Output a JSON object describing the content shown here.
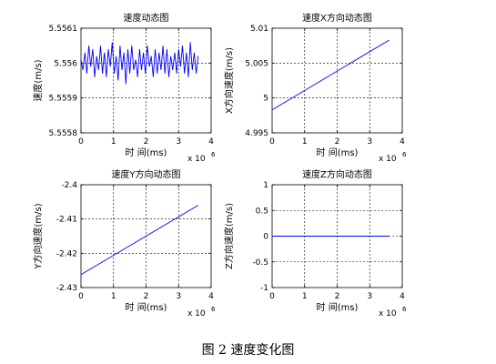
{
  "figure_caption": "图 2  速度变化图",
  "colors": {
    "series": "#0000ff",
    "axis": "#000000",
    "grid": "#000000",
    "background": "#ffffff"
  },
  "chart_data": [
    {
      "type": "line",
      "title": "速度动态图",
      "xlabel": "时 间(ms)",
      "ylabel": "速度(m/s)",
      "x_multiplier": "x 10",
      "x_multiplier_exp": "6",
      "xlim": [
        0,
        4
      ],
      "ylim": [
        5.5558,
        5.5561
      ],
      "xticks": [
        0,
        1,
        2,
        3,
        4
      ],
      "xtick_labels": [
        "0",
        "1",
        "2",
        "3",
        "4"
      ],
      "yticks": [
        5.5558,
        5.5559,
        5.556,
        5.5561
      ],
      "ytick_labels": [
        "5.5558",
        "5.5559",
        "5.556",
        "5.5561"
      ],
      "grid": true,
      "series": [
        {
          "x": [
            0.0,
            0.06,
            0.12,
            0.18,
            0.24,
            0.3,
            0.36,
            0.42,
            0.48,
            0.54,
            0.6,
            0.66,
            0.72,
            0.78,
            0.84,
            0.9,
            0.96,
            1.02,
            1.08,
            1.14,
            1.2,
            1.26,
            1.32,
            1.38,
            1.44,
            1.5,
            1.56,
            1.62,
            1.68,
            1.74,
            1.8,
            1.86,
            1.92,
            1.98,
            2.04,
            2.1,
            2.16,
            2.22,
            2.28,
            2.34,
            2.4,
            2.46,
            2.52,
            2.58,
            2.64,
            2.7,
            2.76,
            2.82,
            2.88,
            2.94,
            3.0,
            3.06,
            3.12,
            3.18,
            3.24,
            3.3,
            3.36,
            3.42,
            3.48,
            3.54,
            3.6
          ],
          "y": [
            5.55601,
            5.55598,
            5.55603,
            5.55597,
            5.55605,
            5.55599,
            5.55604,
            5.55596,
            5.55602,
            5.55598,
            5.55605,
            5.55597,
            5.55603,
            5.55596,
            5.55604,
            5.55599,
            5.55606,
            5.55597,
            5.55602,
            5.55595,
            5.55605,
            5.55598,
            5.55603,
            5.55594,
            5.55604,
            5.55597,
            5.55605,
            5.55598,
            5.55601,
            5.55596,
            5.55604,
            5.55598,
            5.55603,
            5.55597,
            5.55605,
            5.55599,
            5.55602,
            5.55596,
            5.55604,
            5.55597,
            5.55603,
            5.55598,
            5.55605,
            5.55597,
            5.55604,
            5.55596,
            5.55602,
            5.55598,
            5.55603,
            5.55597,
            5.55604,
            5.55599,
            5.55605,
            5.55597,
            5.55603,
            5.55596,
            5.55606,
            5.55598,
            5.55603,
            5.55597,
            5.55602
          ]
        }
      ]
    },
    {
      "type": "line",
      "title": "速度X方向动态图",
      "xlabel": "时 间(ms)",
      "ylabel": "X方向速度(m/s)",
      "x_multiplier": "x 10",
      "x_multiplier_exp": "6",
      "xlim": [
        0,
        4
      ],
      "ylim": [
        4.995,
        5.01
      ],
      "xticks": [
        0,
        1,
        2,
        3,
        4
      ],
      "xtick_labels": [
        "0",
        "1",
        "2",
        "3",
        "4"
      ],
      "yticks": [
        4.995,
        5.0,
        5.005,
        5.01
      ],
      "ytick_labels": [
        "4.995",
        "5",
        "5.005",
        "5.01"
      ],
      "grid": true,
      "series": [
        {
          "x": [
            0,
            3.6
          ],
          "y": [
            4.9983,
            5.0083
          ]
        }
      ]
    },
    {
      "type": "line",
      "title": "速度Y方向动态图",
      "xlabel": "时 间(ms)",
      "ylabel": "Y方向速度(m/s)",
      "x_multiplier": "x 10",
      "x_multiplier_exp": "6",
      "xlim": [
        0,
        4
      ],
      "ylim": [
        -2.43,
        -2.4
      ],
      "xticks": [
        0,
        1,
        2,
        3,
        4
      ],
      "xtick_labels": [
        "0",
        "1",
        "2",
        "3",
        "4"
      ],
      "yticks": [
        -2.43,
        -2.42,
        -2.41,
        -2.4
      ],
      "ytick_labels": [
        "-2.43",
        "-2.42",
        "-2.41",
        "-2.4"
      ],
      "grid": true,
      "series": [
        {
          "x": [
            0,
            3.6
          ],
          "y": [
            -2.4262,
            -2.406
          ]
        }
      ]
    },
    {
      "type": "line",
      "title": "速度Z方向动态图",
      "xlabel": "时 间(ms)",
      "ylabel": "Z方向速度(m/s)",
      "x_multiplier": "x 10",
      "x_multiplier_exp": "6",
      "xlim": [
        0,
        4
      ],
      "ylim": [
        -1,
        1
      ],
      "xticks": [
        0,
        1,
        2,
        3,
        4
      ],
      "xtick_labels": [
        "0",
        "1",
        "2",
        "3",
        "4"
      ],
      "yticks": [
        -1,
        -0.5,
        0,
        0.5,
        1
      ],
      "ytick_labels": [
        "-1",
        "-0.5",
        "0",
        "0.5",
        "1"
      ],
      "grid": true,
      "series": [
        {
          "x": [
            0,
            3.6
          ],
          "y": [
            0,
            0
          ]
        }
      ]
    }
  ]
}
